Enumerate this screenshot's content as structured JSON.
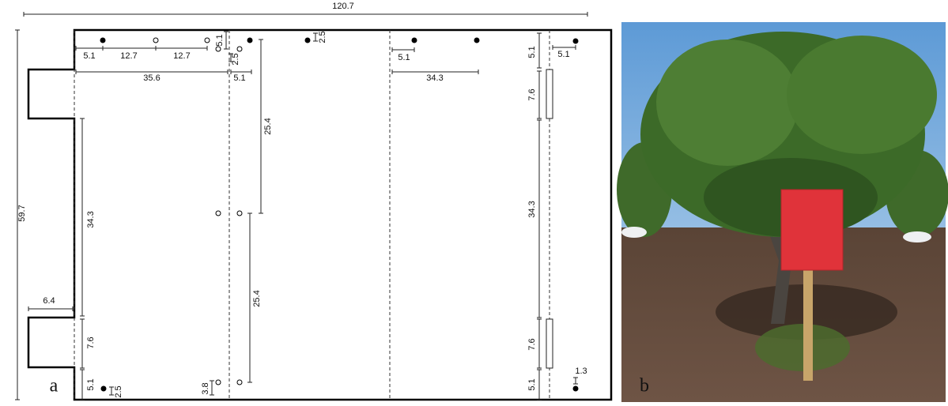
{
  "panel_a": {
    "label": "a",
    "dimensions": [
      "120.7",
      "59.7",
      "5.1",
      "12.7",
      "12.7",
      "5.1",
      "2.5",
      "35.6",
      "5.1",
      "2.5",
      "25.4",
      "5.1",
      "34.3",
      "5.1",
      "5.1",
      "7.6",
      "34.3",
      "34.3",
      "6.4",
      "25.4",
      "7.6",
      "7.6",
      "5.1",
      "2.5",
      "3.8",
      "5.1",
      "1.3"
    ]
  },
  "panel_b": {
    "label": "b"
  }
}
